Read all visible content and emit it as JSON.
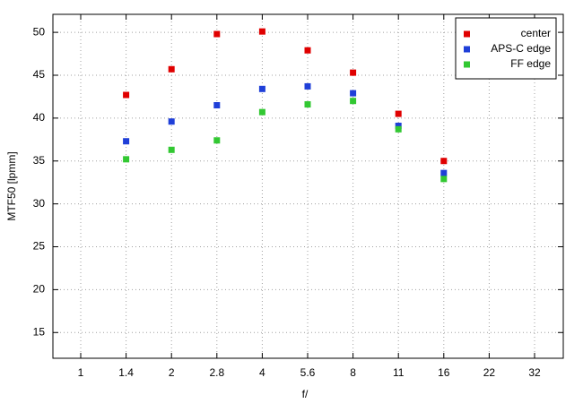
{
  "chart_data": {
    "type": "scatter",
    "xlabel": "f/",
    "ylabel": "MTF50 [lpmm]",
    "categories": [
      "1",
      "1.4",
      "2",
      "2.8",
      "4",
      "5.6",
      "8",
      "11",
      "16",
      "22",
      "32"
    ],
    "series": [
      {
        "name": "center",
        "color": "#e00000",
        "values": [
          null,
          42.7,
          45.7,
          49.8,
          50.1,
          47.9,
          45.3,
          40.5,
          35.0,
          null,
          null
        ]
      },
      {
        "name": "APS-C edge",
        "color": "#1f3fd8",
        "values": [
          null,
          37.3,
          39.6,
          41.5,
          43.4,
          43.7,
          42.9,
          39.1,
          33.6,
          null,
          null
        ]
      },
      {
        "name": "FF edge",
        "color": "#32c832",
        "values": [
          null,
          35.2,
          36.3,
          37.4,
          40.7,
          41.6,
          42.0,
          38.7,
          32.9,
          null,
          null
        ]
      }
    ],
    "ylim": [
      12,
      52.1
    ],
    "yticks": [
      15,
      20,
      25,
      30,
      35,
      40,
      45,
      50
    ],
    "grid": true,
    "legend": "top-right"
  }
}
